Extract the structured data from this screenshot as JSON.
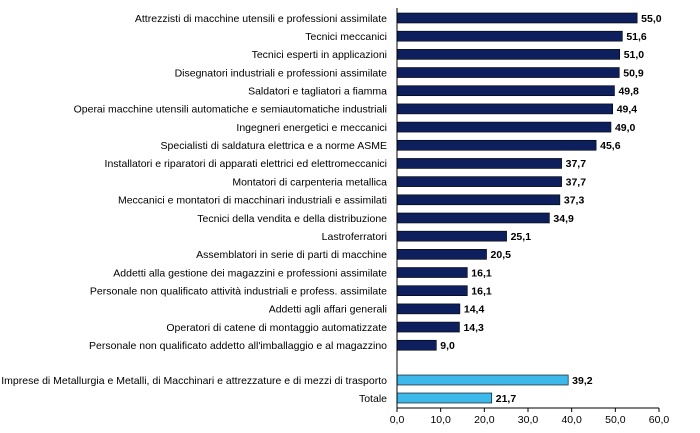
{
  "chart_data": {
    "type": "bar",
    "orientation": "horizontal",
    "categories": [
      "Attrezzisti di macchine utensili e professioni assimilate",
      "Tecnici meccanici",
      "Tecnici esperti in applicazioni",
      "Disegnatori industriali e professioni assimilate",
      "Saldatori e tagliatori a fiamma",
      "Operai macchine utensili automatiche e semiautomatiche industriali",
      "Ingegneri energetici e meccanici",
      "Specialisti di saldatura elettrica e a norme ASME",
      "Installatori e riparatori di apparati elettrici ed elettromeccanici",
      "Montatori di carpenteria metallica",
      "Meccanici e montatori di macchinari industriali e assimilati",
      "Tecnici della vendita e della distribuzione",
      "Lastroferratori",
      "Assemblatori in serie di parti di macchine",
      "Addetti alla gestione dei magazzini e professioni assimilate",
      "Personale non qualificato attività industriali e profess. assimilate",
      "Addetti agli affari generali",
      "Operatori di catene di montaggio automatizzate",
      "Personale non qualificato addetto all'imballaggio e al magazzino"
    ],
    "values": [
      55.0,
      51.6,
      51.0,
      50.9,
      49.8,
      49.4,
      49.0,
      45.6,
      37.7,
      37.7,
      37.3,
      34.9,
      25.1,
      20.5,
      16.1,
      16.1,
      14.4,
      14.3,
      9.0
    ],
    "value_labels": [
      "55,0",
      "51,6",
      "51,0",
      "50,9",
      "49,8",
      "49,4",
      "49,0",
      "45,6",
      "37,7",
      "37,7",
      "37,3",
      "34,9",
      "25,1",
      "20,5",
      "16,1",
      "16,1",
      "14,4",
      "14,3",
      "9,0"
    ],
    "summary_categories": [
      "Imprese di Metallurgia e Metalli, di Macchinari e attrezzature e di mezzi di trasporto",
      "Totale"
    ],
    "summary_values": [
      39.2,
      21.7
    ],
    "summary_value_labels": [
      "39,2",
      "21,7"
    ],
    "xlim": [
      0,
      60
    ],
    "ticks": [
      0,
      10,
      20,
      30,
      40,
      50,
      60
    ],
    "tick_labels": [
      "0,0",
      "10,0",
      "20,0",
      "30,0",
      "40,0",
      "50,0",
      "60,0"
    ],
    "grid": false,
    "legend": "none",
    "colors": {
      "main_bar": "#0d1f5c",
      "summary_bar": "#3cb8ea",
      "bar_border": "#000000",
      "axis": "#000000"
    }
  }
}
